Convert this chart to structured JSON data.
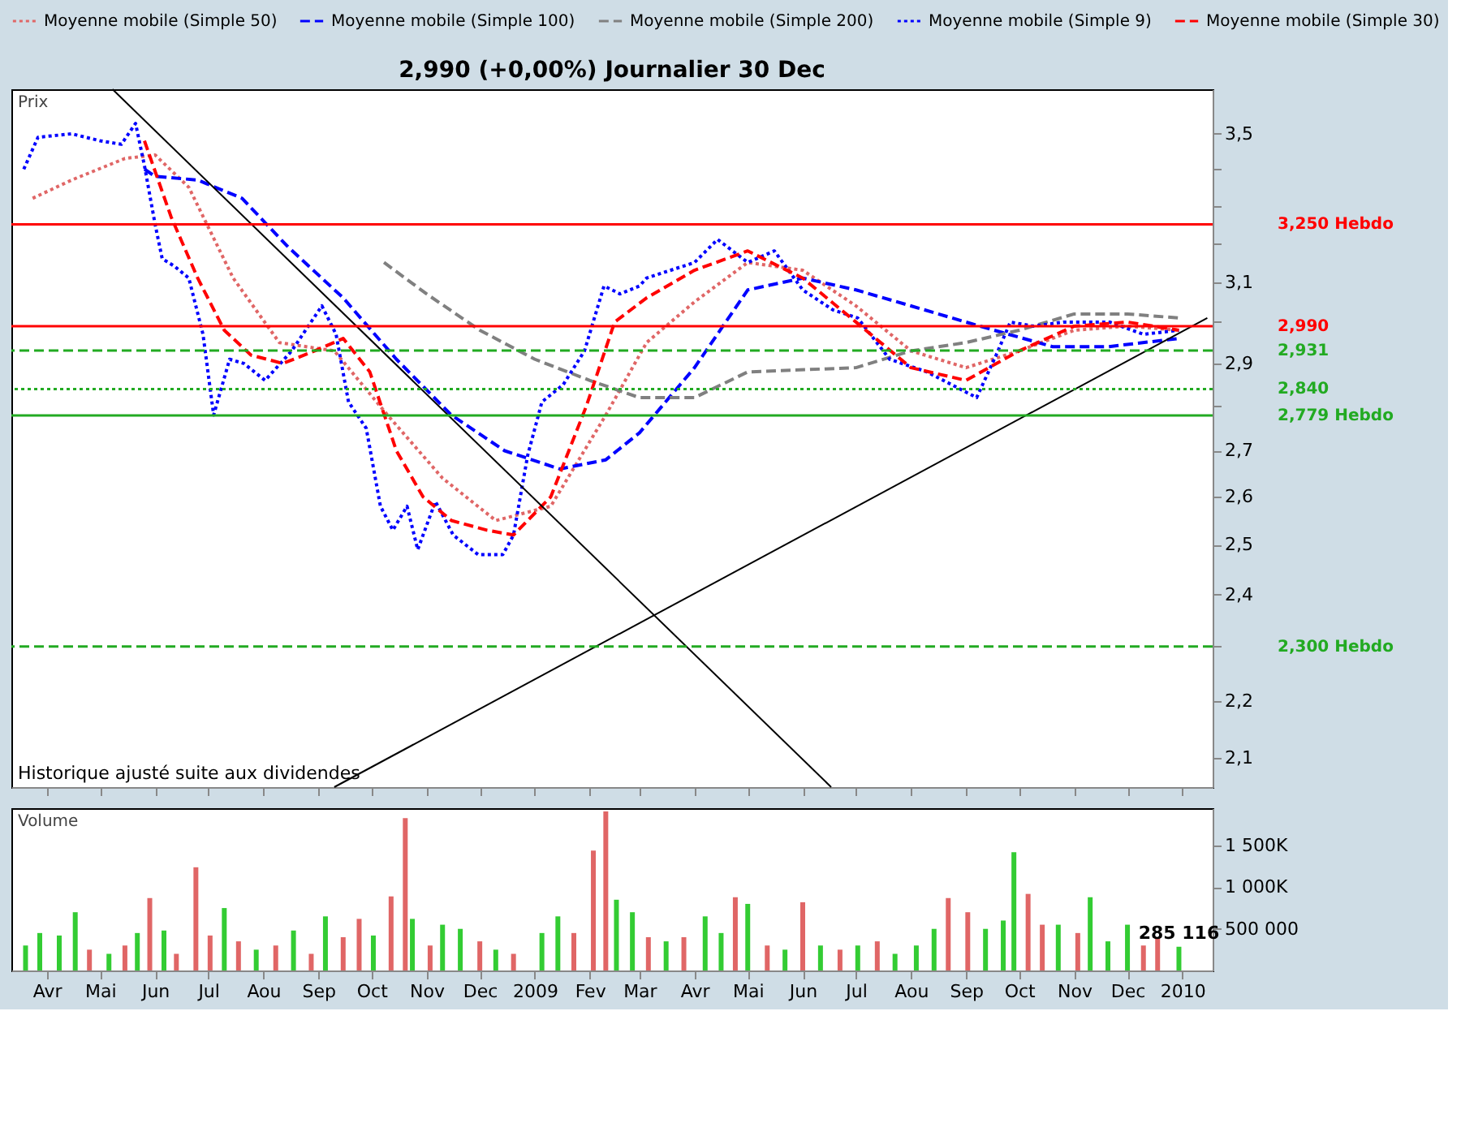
{
  "chart_data": [
    {
      "type": "line",
      "title": "2,990 (+0,00%)   Journalier  30 Dec",
      "ylabel": "Prix",
      "log": "y",
      "legend": "top",
      "tick_labels": "y",
      "xlim": [
        "2008-03-12",
        "2010-01-18"
      ],
      "xticks": [
        {
          "value": "2008-04-01",
          "label": null
        },
        {
          "value": "2008-05-01",
          "label": null
        },
        {
          "value": "2008-06-01",
          "label": null
        },
        {
          "value": "2008-07-01",
          "label": null
        },
        {
          "value": "2008-08-01",
          "label": null
        },
        {
          "value": "2008-09-01",
          "label": null
        },
        {
          "value": "2008-10-01",
          "label": null
        },
        {
          "value": "2008-11-01",
          "label": null
        },
        {
          "value": "2008-12-01",
          "label": null
        },
        {
          "value": "2009-01-01",
          "label": null
        },
        {
          "value": "2009-02-01",
          "label": null
        },
        {
          "value": "2009-03-01",
          "label": null
        },
        {
          "value": "2009-04-01",
          "label": null
        },
        {
          "value": "2009-05-01",
          "label": null
        },
        {
          "value": "2009-06-01",
          "label": null
        },
        {
          "value": "2009-07-01",
          "label": null
        },
        {
          "value": "2009-08-01",
          "label": null
        },
        {
          "value": "2009-09-01",
          "label": null
        },
        {
          "value": "2009-10-01",
          "label": null
        },
        {
          "value": "2009-11-01",
          "label": null
        },
        {
          "value": "2009-12-01",
          "label": null
        },
        {
          "value": "2010-01-01",
          "label": null
        }
      ],
      "ylim": [
        2.05,
        3.63
      ],
      "yticks": [
        {
          "value": 2.1,
          "label": "2,1"
        },
        {
          "value": 2.2,
          "label": "2,2"
        },
        {
          "value": 2.3,
          "label": null
        },
        {
          "value": 2.4,
          "label": "2,4"
        },
        {
          "value": 2.5,
          "label": "2,5"
        },
        {
          "value": 2.6,
          "label": "2,6"
        },
        {
          "value": 2.7,
          "label": "2,7"
        },
        {
          "value": 2.8,
          "label": null
        },
        {
          "value": 2.9,
          "label": "2,9"
        },
        {
          "value": 3.0,
          "label": null
        },
        {
          "value": 3.1,
          "label": "3,1"
        },
        {
          "value": 3.2,
          "label": null
        },
        {
          "value": 3.3,
          "label": null
        },
        {
          "value": 3.4,
          "label": null
        },
        {
          "value": 3.5,
          "label": "3,5"
        }
      ],
      "series": [
        {
          "name": "Moyenne mobile (Simple 50)",
          "color": "#e06666",
          "line_style": "dotted",
          "x": [
            "2008-03-24",
            "2008-04-15",
            "2008-05-15",
            "2008-06-01",
            "2008-06-20",
            "2008-07-15",
            "2008-08-10",
            "2008-09-10",
            "2008-10-10",
            "2008-11-10",
            "2008-12-10",
            "2009-01-10",
            "2009-02-10",
            "2009-03-05",
            "2009-04-01",
            "2009-05-01",
            "2009-06-01",
            "2009-07-01",
            "2009-08-01",
            "2009-09-01",
            "2009-10-01",
            "2009-11-01",
            "2009-12-01",
            "2009-12-30"
          ],
          "values": [
            3.32,
            3.37,
            3.43,
            3.44,
            3.35,
            3.11,
            2.95,
            2.93,
            2.78,
            2.64,
            2.55,
            2.58,
            2.78,
            2.95,
            3.05,
            3.15,
            3.13,
            3.04,
            2.93,
            2.89,
            2.93,
            2.98,
            2.99,
            2.98
          ]
        },
        {
          "name": "Moyenne mobile (Simple 100)",
          "color": "#0000ff",
          "line_style": "dashed",
          "x": [
            "2008-05-26",
            "2008-06-01",
            "2008-06-25",
            "2008-07-20",
            "2008-08-15",
            "2008-09-15",
            "2008-10-15",
            "2008-11-15",
            "2008-12-15",
            "2009-01-15",
            "2009-02-10",
            "2009-03-01",
            "2009-04-01",
            "2009-05-01",
            "2009-06-01",
            "2009-07-01",
            "2009-08-01",
            "2009-09-01",
            "2009-09-25",
            "2009-10-20",
            "2009-11-20",
            "2009-12-30"
          ],
          "values": [
            3.4,
            3.38,
            3.37,
            3.32,
            3.19,
            3.06,
            2.91,
            2.78,
            2.7,
            2.66,
            2.68,
            2.74,
            2.89,
            3.08,
            3.11,
            3.08,
            3.04,
            3.0,
            2.97,
            2.94,
            2.94,
            2.96
          ]
        },
        {
          "name": "Moyenne mobile (Simple 200)",
          "color": "#808080",
          "line_style": "dashed",
          "x": [
            "2008-10-08",
            "2008-11-01",
            "2008-12-01",
            "2009-01-01",
            "2009-02-01",
            "2009-03-01",
            "2009-04-01",
            "2009-05-01",
            "2009-07-01",
            "2009-08-01",
            "2009-09-01",
            "2009-10-01",
            "2009-11-01",
            "2009-12-01",
            "2009-12-30"
          ],
          "values": [
            3.15,
            3.07,
            2.98,
            2.91,
            2.86,
            2.82,
            2.82,
            2.88,
            2.89,
            2.93,
            2.95,
            2.98,
            3.02,
            3.02,
            3.01
          ]
        },
        {
          "name": "Moyenne mobile (Simple 9)",
          "color": "#0000ff",
          "line_style": "dotted",
          "x": [
            "2008-03-19",
            "2008-03-27",
            "2008-04-15",
            "2008-05-01",
            "2008-05-13",
            "2008-05-21",
            "2008-05-26",
            "2008-06-01",
            "2008-06-05",
            "2008-06-12",
            "2008-06-20",
            "2008-06-28",
            "2008-07-04",
            "2008-07-13",
            "2008-07-21",
            "2008-08-02",
            "2008-08-17",
            "2008-09-03",
            "2008-09-11",
            "2008-09-18",
            "2008-09-28",
            "2008-10-06",
            "2008-10-13",
            "2008-10-21",
            "2008-10-27",
            "2008-11-06",
            "2008-11-16",
            "2008-11-30",
            "2008-12-14",
            "2008-12-20",
            "2008-12-28",
            "2009-01-05",
            "2009-01-17",
            "2009-01-29",
            "2009-02-09",
            "2009-02-18",
            "2009-03-01",
            "2009-03-05",
            "2009-04-01",
            "2009-04-14",
            "2009-05-01",
            "2009-05-16",
            "2009-06-01",
            "2009-06-18",
            "2009-07-02",
            "2009-07-20",
            "2009-08-10",
            "2009-09-07",
            "2009-09-18",
            "2009-09-26",
            "2009-10-09",
            "2009-10-26",
            "2009-11-21",
            "2009-12-10",
            "2009-12-30"
          ],
          "values": [
            3.4,
            3.49,
            3.5,
            3.48,
            3.47,
            3.53,
            3.41,
            3.25,
            3.16,
            3.14,
            3.11,
            2.97,
            2.78,
            2.91,
            2.9,
            2.86,
            2.93,
            3.04,
            2.97,
            2.81,
            2.75,
            2.58,
            2.53,
            2.58,
            2.49,
            2.59,
            2.52,
            2.48,
            2.48,
            2.52,
            2.69,
            2.81,
            2.85,
            2.93,
            3.09,
            3.07,
            3.09,
            3.11,
            3.15,
            3.21,
            3.15,
            3.18,
            3.08,
            3.03,
            3.01,
            2.91,
            2.88,
            2.82,
            2.92,
            3.0,
            2.99,
            3.0,
            3.0,
            2.97,
            2.98
          ]
        },
        {
          "name": "Moyenne mobile (Simple 30)",
          "color": "#ff0000",
          "line_style": "dashed",
          "x": [
            "2008-05-26",
            "2008-06-10",
            "2008-06-25",
            "2008-07-10",
            "2008-07-25",
            "2008-08-12",
            "2008-08-30",
            "2008-09-15",
            "2008-09-30",
            "2008-10-15",
            "2008-10-30",
            "2008-11-15",
            "2008-12-05",
            "2008-12-20",
            "2009-01-10",
            "2009-01-30",
            "2009-02-15",
            "2009-03-05",
            "2009-04-01",
            "2009-05-01",
            "2009-06-01",
            "2009-07-01",
            "2009-08-01",
            "2009-09-01",
            "2009-10-01",
            "2009-11-01",
            "2009-12-01",
            "2009-12-30"
          ],
          "values": [
            3.48,
            3.27,
            3.11,
            2.98,
            2.92,
            2.9,
            2.93,
            2.96,
            2.88,
            2.7,
            2.6,
            2.55,
            2.53,
            2.52,
            2.6,
            2.8,
            3.0,
            3.06,
            3.13,
            3.18,
            3.11,
            3.0,
            2.89,
            2.86,
            2.93,
            2.99,
            3.0,
            2.98
          ]
        },
        {
          "type": "line",
          "color": "#000000",
          "line_style": "solid",
          "x": [
            "2008-05-08",
            "2009-06-17"
          ],
          "values": [
            3.63,
            2.05
          ]
        },
        {
          "type": "line",
          "color": "#000000",
          "line_style": "solid",
          "x": [
            "2008-09-10",
            "2010-01-15"
          ],
          "values": [
            2.05,
            3.01
          ]
        }
      ],
      "ref_lines": [
        {
          "axis": "y",
          "value": 3.25,
          "label": "3,250 Hebdo",
          "color": "#ff0000",
          "line_style": "solid"
        },
        {
          "axis": "y",
          "value": 2.99,
          "label": "2,990",
          "color": "#ff0000",
          "line_style": "solid"
        },
        {
          "axis": "y",
          "value": 2.931,
          "label": "2,931",
          "color": "#22aa22",
          "line_style": "dashed"
        },
        {
          "axis": "y",
          "value": 2.84,
          "label": "2,840",
          "color": "#22aa22",
          "line_style": "dotted"
        },
        {
          "axis": "y",
          "value": 2.779,
          "label": "2,779 Hebdo",
          "color": "#22aa22",
          "line_style": "solid"
        },
        {
          "axis": "y",
          "value": 2.3,
          "label": "2,300 Hebdo",
          "color": "#22aa22",
          "line_style": "dashed"
        }
      ],
      "annotations": [
        "Historique ajusté suite aux dividendes"
      ]
    },
    {
      "type": "bar",
      "ylabel": "Volume",
      "xlim": [
        "2008-03-12",
        "2010-01-18"
      ],
      "xticks": [
        {
          "value": "2008-04-01",
          "label": "Avr"
        },
        {
          "value": "2008-05-01",
          "label": "Mai"
        },
        {
          "value": "2008-06-01",
          "label": "Jun"
        },
        {
          "value": "2008-07-01",
          "label": "Jul"
        },
        {
          "value": "2008-08-01",
          "label": "Aou"
        },
        {
          "value": "2008-09-01",
          "label": "Sep"
        },
        {
          "value": "2008-10-01",
          "label": "Oct"
        },
        {
          "value": "2008-11-01",
          "label": "Nov"
        },
        {
          "value": "2008-12-01",
          "label": "Dec"
        },
        {
          "value": "2009-01-01",
          "label": "2009"
        },
        {
          "value": "2009-02-01",
          "label": "Fev"
        },
        {
          "value": "2009-03-01",
          "label": "Mar"
        },
        {
          "value": "2009-04-01",
          "label": "Avr"
        },
        {
          "value": "2009-05-01",
          "label": "Mai"
        },
        {
          "value": "2009-06-01",
          "label": "Jun"
        },
        {
          "value": "2009-07-01",
          "label": "Jul"
        },
        {
          "value": "2009-08-01",
          "label": "Aou"
        },
        {
          "value": "2009-09-01",
          "label": "Sep"
        },
        {
          "value": "2009-10-01",
          "label": "Oct"
        },
        {
          "value": "2009-11-01",
          "label": "Nov"
        },
        {
          "value": "2009-12-01",
          "label": "Dec"
        },
        {
          "value": "2010-01-01",
          "label": "2010"
        }
      ],
      "ylim": [
        0,
        1950000
      ],
      "yticks": [
        {
          "value": 500000,
          "label": "500 000"
        },
        {
          "value": 1000000,
          "label": "1 000K"
        },
        {
          "value": 1500000,
          "label": "1 500K"
        }
      ],
      "x": [
        "2008-03-20",
        "2008-03-28",
        "2008-04-08",
        "2008-04-17",
        "2008-04-25",
        "2008-05-06",
        "2008-05-15",
        "2008-05-22",
        "2008-05-29",
        "2008-06-06",
        "2008-06-13",
        "2008-06-24",
        "2008-07-02",
        "2008-07-10",
        "2008-07-18",
        "2008-07-28",
        "2008-08-08",
        "2008-08-18",
        "2008-08-28",
        "2008-09-05",
        "2008-09-15",
        "2008-09-24",
        "2008-10-02",
        "2008-10-12",
        "2008-10-20",
        "2008-10-24",
        "2008-11-03",
        "2008-11-10",
        "2008-11-20",
        "2008-12-01",
        "2008-12-10",
        "2008-12-20",
        "2009-01-05",
        "2009-01-14",
        "2009-01-23",
        "2009-02-03",
        "2009-02-10",
        "2009-02-16",
        "2009-02-25",
        "2009-03-06",
        "2009-03-16",
        "2009-03-26",
        "2009-04-07",
        "2009-04-16",
        "2009-04-24",
        "2009-05-01",
        "2009-05-12",
        "2009-05-22",
        "2009-06-01",
        "2009-06-11",
        "2009-06-22",
        "2009-07-02",
        "2009-07-13",
        "2009-07-23",
        "2009-08-04",
        "2009-08-14",
        "2009-08-22",
        "2009-09-02",
        "2009-09-12",
        "2009-09-22",
        "2009-09-28",
        "2009-10-06",
        "2009-10-14",
        "2009-10-23",
        "2009-11-03",
        "2009-11-10",
        "2009-11-20",
        "2009-12-01",
        "2009-12-10",
        "2009-12-18",
        "2009-12-30"
      ],
      "values": [
        300000,
        450000,
        420000,
        700000,
        250000,
        200000,
        300000,
        450000,
        870000,
        480000,
        200000,
        1240000,
        420000,
        750000,
        350000,
        250000,
        300000,
        480000,
        200000,
        650000,
        400000,
        620000,
        420000,
        890000,
        1830000,
        620000,
        300000,
        550000,
        500000,
        350000,
        250000,
        200000,
        450000,
        650000,
        450000,
        1440000,
        1910000,
        850000,
        700000,
        400000,
        350000,
        400000,
        650000,
        450000,
        880000,
        800000,
        300000,
        250000,
        820000,
        300000,
        250000,
        300000,
        350000,
        200000,
        300000,
        500000,
        870000,
        700000,
        500000,
        600000,
        1420000,
        920000,
        550000,
        550000,
        450000,
        880000,
        350000,
        550000,
        300000,
        400000,
        285116
      ],
      "colors": [
        "#33cc33",
        "#33cc33",
        "#33cc33",
        "#33cc33",
        "#e06666",
        "#33cc33",
        "#e06666",
        "#33cc33",
        "#e06666",
        "#33cc33",
        "#e06666",
        "#e06666",
        "#e06666",
        "#33cc33",
        "#e06666",
        "#33cc33",
        "#e06666",
        "#33cc33",
        "#e06666",
        "#33cc33",
        "#e06666",
        "#e06666",
        "#33cc33",
        "#e06666",
        "#e06666",
        "#33cc33",
        "#e06666",
        "#33cc33",
        "#33cc33",
        "#e06666",
        "#33cc33",
        "#e06666",
        "#33cc33",
        "#33cc33",
        "#e06666",
        "#e06666",
        "#e06666",
        "#33cc33",
        "#33cc33",
        "#e06666",
        "#33cc33",
        "#e06666",
        "#33cc33",
        "#33cc33",
        "#e06666",
        "#33cc33",
        "#e06666",
        "#33cc33",
        "#e06666",
        "#33cc33",
        "#e06666",
        "#33cc33",
        "#e06666",
        "#33cc33",
        "#33cc33",
        "#33cc33",
        "#e06666",
        "#e06666",
        "#33cc33",
        "#33cc33",
        "#33cc33",
        "#e06666",
        "#e06666",
        "#33cc33",
        "#e06666",
        "#33cc33",
        "#33cc33",
        "#33cc33",
        "#e06666",
        "#e06666",
        "#33cc33"
      ],
      "annotations": [
        {
          "text": "285 116",
          "x": "2009-12-30",
          "y": 285116
        }
      ]
    }
  ]
}
